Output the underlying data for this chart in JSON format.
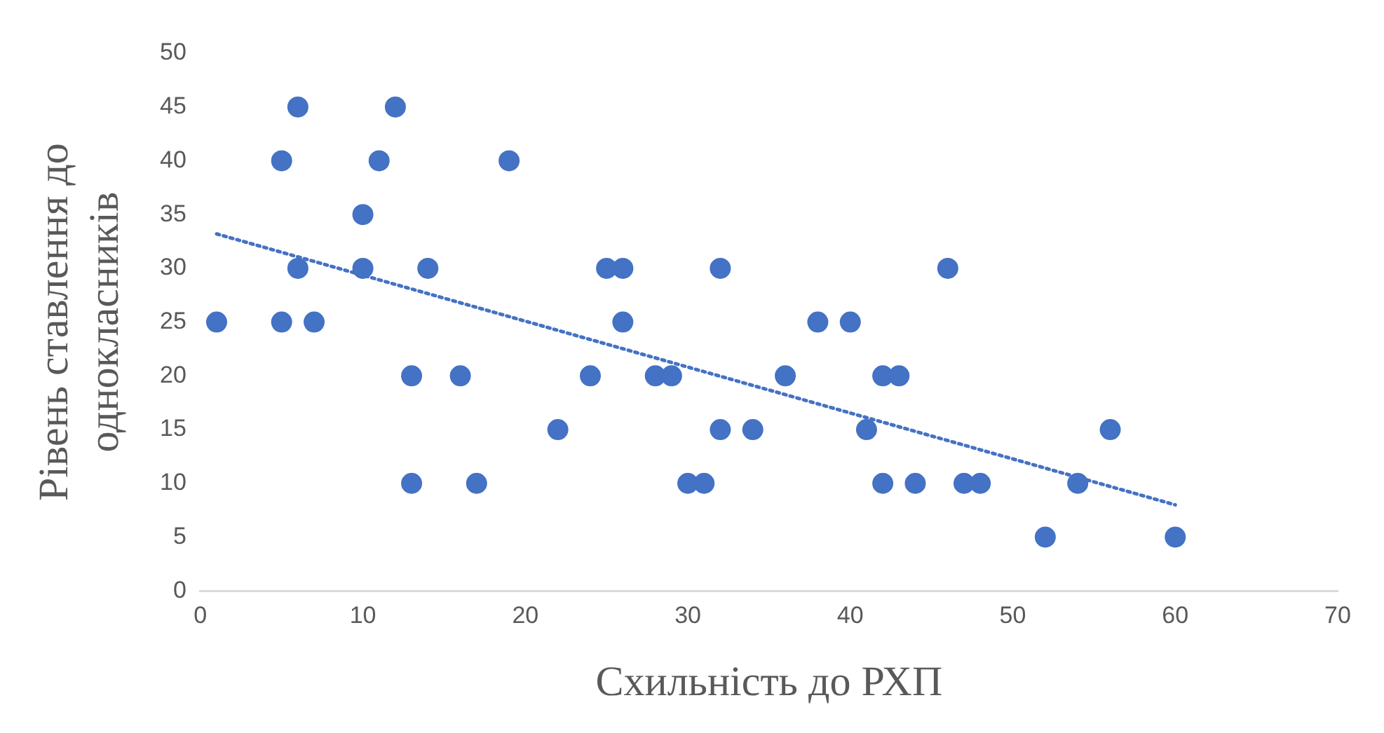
{
  "chart_data": {
    "type": "scatter",
    "xlabel": "Схильність до РХП",
    "ylabel": "Рівень ставлення до однокласників",
    "xlim": [
      0,
      70
    ],
    "xticks": [
      0,
      10,
      20,
      30,
      40,
      50,
      60,
      70
    ],
    "ylim": [
      0,
      50
    ],
    "yticks": [
      0,
      5,
      10,
      15,
      20,
      25,
      30,
      35,
      40,
      45,
      50
    ],
    "series": [
      {
        "color": "#4472c4",
        "marker": "circle",
        "x": [
          1,
          5,
          5,
          6,
          6,
          7,
          10,
          10,
          11,
          12,
          13,
          13,
          14,
          16,
          17,
          19,
          22,
          24,
          25,
          26,
          26,
          28,
          29,
          30,
          31,
          32,
          32,
          34,
          36,
          38,
          40,
          41,
          42,
          42,
          43,
          44,
          46,
          47,
          48,
          52,
          54,
          56,
          60
        ],
        "values": [
          25,
          40,
          25,
          45,
          30,
          25,
          35,
          30,
          40,
          45,
          20,
          10,
          30,
          20,
          10,
          40,
          15,
          20,
          30,
          30,
          25,
          20,
          20,
          10,
          10,
          30,
          15,
          15,
          20,
          25,
          25,
          15,
          20,
          10,
          20,
          10,
          30,
          10,
          10,
          5,
          10,
          15,
          5
        ]
      },
      {
        "type": "line",
        "color": "#4472c4",
        "marker": "none",
        "line_style": "dotted",
        "x": [
          1,
          60
        ],
        "values": [
          33.2,
          8
        ]
      }
    ]
  }
}
